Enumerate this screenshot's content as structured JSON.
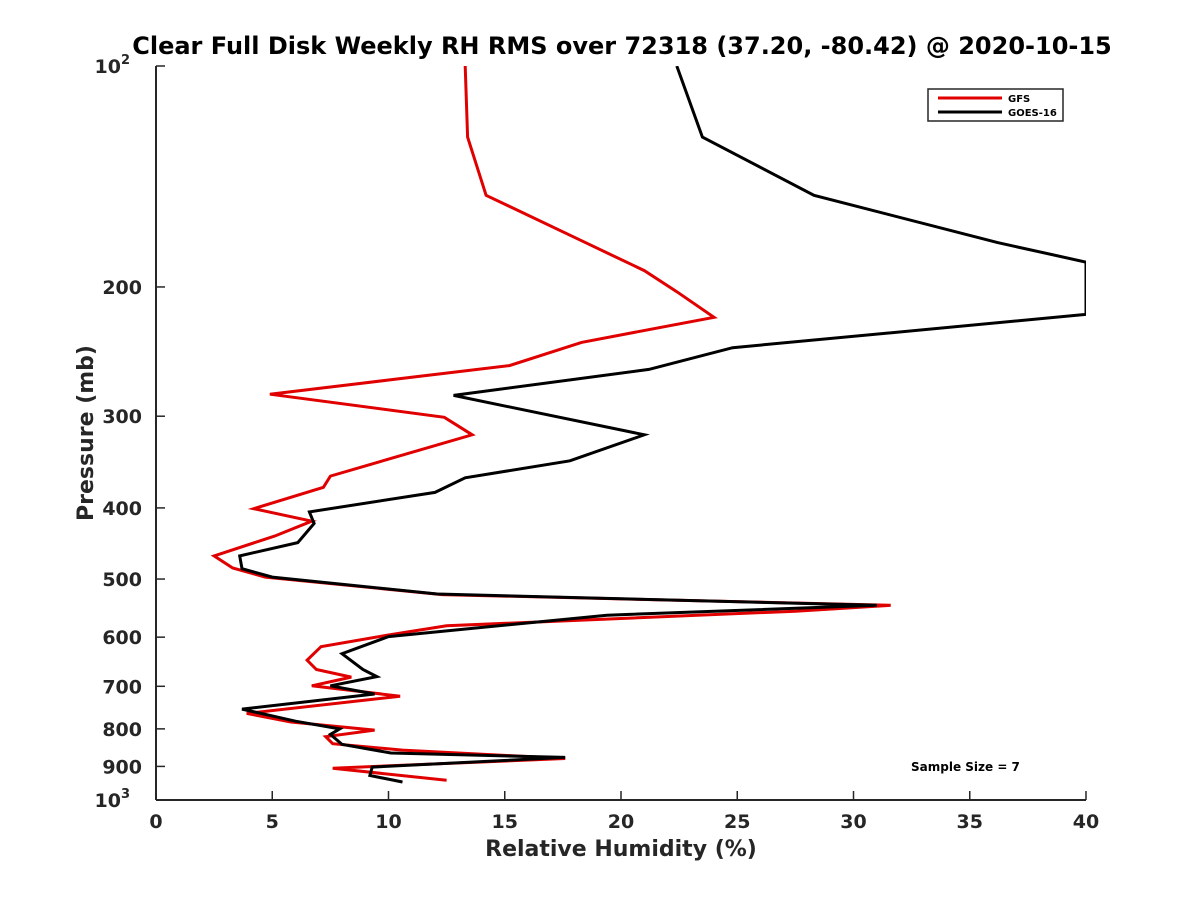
{
  "chart_data": {
    "type": "line",
    "title": "Clear Full Disk Weekly RH RMS over 72318 (37.20, -80.42) @ 2020-10-15",
    "xlabel": "Relative Humidity (%)",
    "ylabel": "Pressure (mb)",
    "xlim": [
      0,
      40
    ],
    "ylim": [
      100,
      1000
    ],
    "y_scale": "log",
    "y_reversed": true,
    "x_ticks": [
      0,
      5,
      10,
      15,
      20,
      25,
      30,
      35,
      40
    ],
    "y_ticks": [
      {
        "value": 100,
        "label": "10",
        "exp": "2"
      },
      {
        "value": 200,
        "label": "200"
      },
      {
        "value": 300,
        "label": "300"
      },
      {
        "value": 400,
        "label": "400"
      },
      {
        "value": 500,
        "label": "500"
      },
      {
        "value": 600,
        "label": "600"
      },
      {
        "value": 700,
        "label": "700"
      },
      {
        "value": 800,
        "label": "800"
      },
      {
        "value": 900,
        "label": "900"
      },
      {
        "value": 1000,
        "label": "10",
        "exp": "3"
      }
    ],
    "legend_position": "top-right",
    "annotation": "Sample Size = 7",
    "series": [
      {
        "name": "GFS",
        "color": "#e00000",
        "points": [
          [
            13.3,
            100
          ],
          [
            13.4,
            125
          ],
          [
            14.2,
            150
          ],
          [
            18.3,
            173
          ],
          [
            21.0,
            190
          ],
          [
            22.4,
            203
          ],
          [
            24.0,
            220
          ],
          [
            18.3,
            238
          ],
          [
            15.2,
            256
          ],
          [
            4.9,
            280
          ],
          [
            12.4,
            301
          ],
          [
            13.6,
            318
          ],
          [
            7.5,
            362
          ],
          [
            7.2,
            375
          ],
          [
            4.2,
            401
          ],
          [
            6.7,
            417
          ],
          [
            5.1,
            437
          ],
          [
            2.5,
            465
          ],
          [
            3.3,
            483
          ],
          [
            4.7,
            497
          ],
          [
            12.3,
            525
          ],
          [
            31.6,
            543
          ],
          [
            27.5,
            553
          ],
          [
            12.5,
            579
          ],
          [
            10.0,
            596
          ],
          [
            7.1,
            618
          ],
          [
            6.5,
            645
          ],
          [
            6.9,
            664
          ],
          [
            8.4,
            680
          ],
          [
            6.7,
            699
          ],
          [
            10.5,
            722
          ],
          [
            3.9,
            762
          ],
          [
            5.8,
            783
          ],
          [
            9.4,
            803
          ],
          [
            7.3,
            820
          ],
          [
            7.6,
            838
          ],
          [
            10.6,
            855
          ],
          [
            17.6,
            878
          ],
          [
            7.6,
            905
          ],
          [
            12.5,
            940
          ]
        ]
      },
      {
        "name": "GOES-16",
        "color": "#000000",
        "points": [
          [
            22.4,
            100
          ],
          [
            23.5,
            125
          ],
          [
            28.3,
            150
          ],
          [
            36.2,
            174
          ],
          [
            40.0,
            185
          ],
          [
            40.0,
            218
          ],
          [
            24.8,
            242
          ],
          [
            21.2,
            259
          ],
          [
            12.8,
            281
          ],
          [
            21.0,
            318
          ],
          [
            17.8,
            345
          ],
          [
            13.3,
            364
          ],
          [
            12.0,
            381
          ],
          [
            6.6,
            405
          ],
          [
            6.8,
            420
          ],
          [
            6.1,
            446
          ],
          [
            3.6,
            465
          ],
          [
            3.7,
            484
          ],
          [
            5.0,
            497
          ],
          [
            12.1,
            524
          ],
          [
            31.0,
            543
          ],
          [
            19.4,
            560
          ],
          [
            10.0,
            599
          ],
          [
            8.0,
            632
          ],
          [
            8.9,
            664
          ],
          [
            9.5,
            679
          ],
          [
            7.5,
            699
          ],
          [
            9.4,
            717
          ],
          [
            3.7,
            752
          ],
          [
            6.0,
            781
          ],
          [
            7.9,
            800
          ],
          [
            7.5,
            814
          ],
          [
            8.0,
            840
          ],
          [
            10.1,
            863
          ],
          [
            17.6,
            875
          ],
          [
            9.3,
            902
          ],
          [
            9.2,
            926
          ],
          [
            10.6,
            945
          ]
        ]
      }
    ]
  }
}
